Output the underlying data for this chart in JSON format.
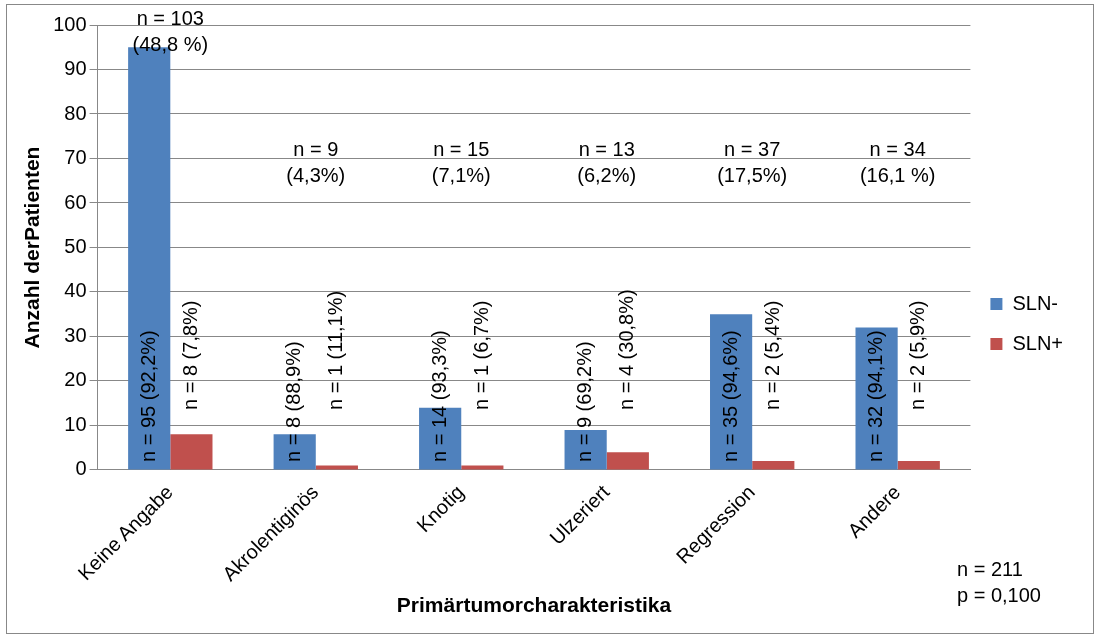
{
  "chart_data": {
    "type": "bar",
    "xlabel": "Primärtumorcharakteristika",
    "ylabel": "Anzahl derPatienten",
    "categories": [
      "Keine Angabe",
      "Akrolentiginös",
      "Knotig",
      "Ulzeriert",
      "Regression",
      "Andere"
    ],
    "series": [
      {
        "name": "SLN-",
        "color": "#4f81bd",
        "values": [
          95,
          8,
          14,
          9,
          35,
          32
        ],
        "value_labels": [
          "n = 95 (92,2%)",
          "n = 8 (88,9%)",
          "n = 14 (93,3%)",
          "n = 9 (69,2%)",
          "n = 35 (94,6%)",
          "n = 32 (94,1%)"
        ]
      },
      {
        "name": "SLN+",
        "color": "#c0504d",
        "values": [
          8,
          1,
          1,
          4,
          2,
          2
        ],
        "value_labels": [
          "n = 8 (7,8%)",
          "n = 1 (11,1%)",
          "n = 1 (6,7%)",
          "n = 4 (30,8%)",
          "n = 2 (5,4%)",
          "n = 2 (5,9%)"
        ]
      }
    ],
    "ylim": [
      0,
      100
    ],
    "yticks": [
      0,
      10,
      20,
      30,
      40,
      50,
      60,
      70,
      80,
      90,
      100
    ],
    "grid": "y",
    "legend": "right",
    "annotations": [
      "n = 103\n(48,8 %)",
      "n = 9\n(4,3%)",
      "n = 15\n(7,1%)",
      "n = 13\n(6,2%)",
      "n = 37\n(17,5%)",
      "n = 34\n(16,1 %)",
      "n = 211\np = 0,100"
    ]
  }
}
